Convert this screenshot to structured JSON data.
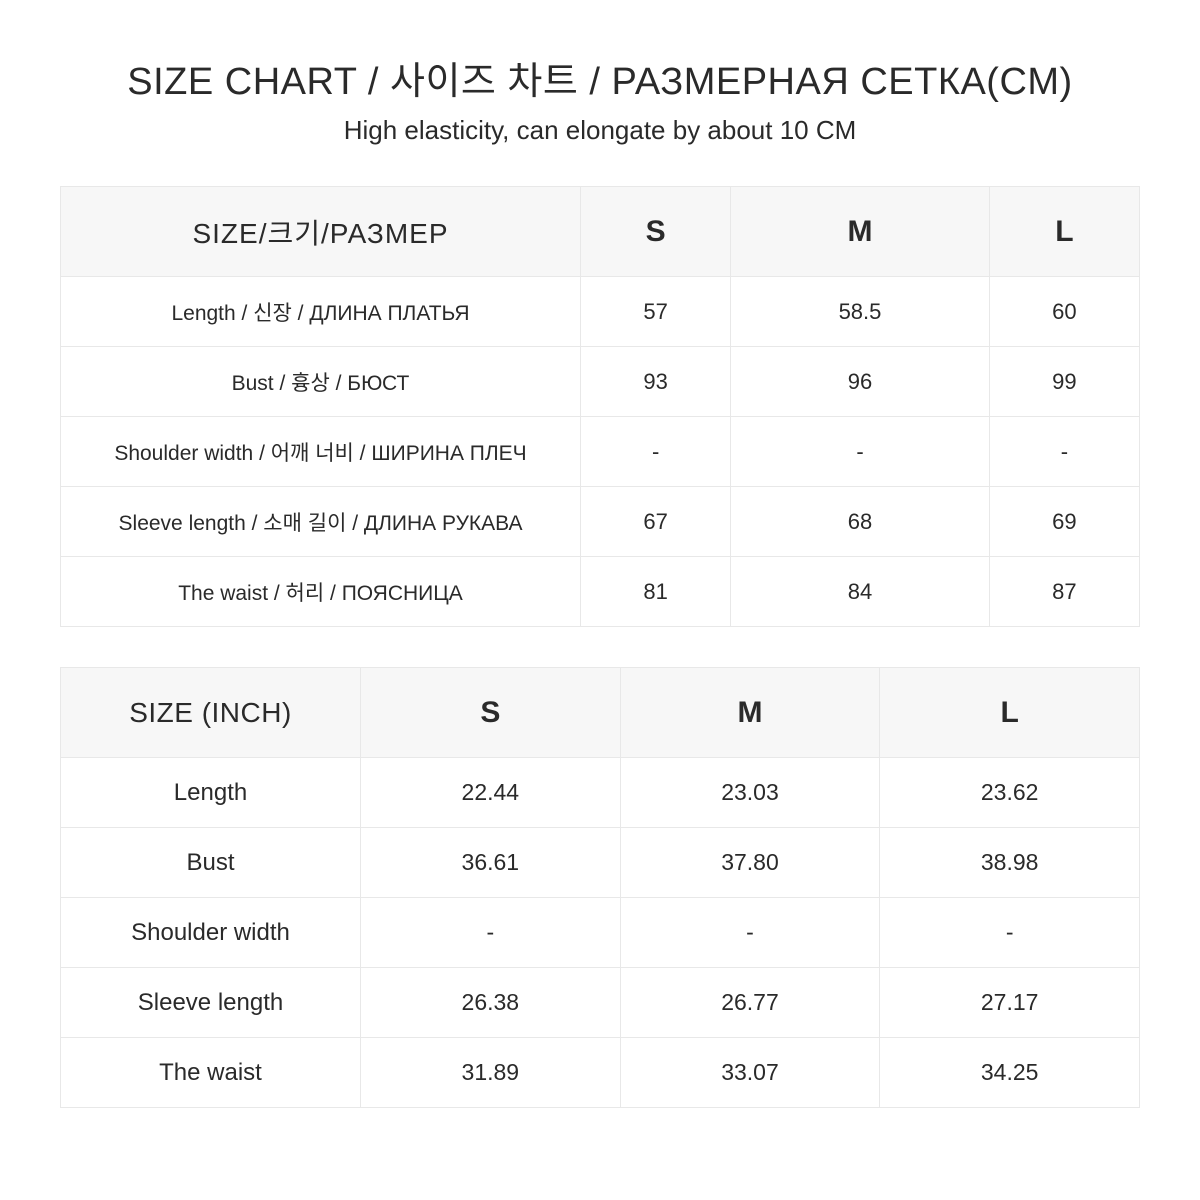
{
  "header": {
    "title": "SIZE CHART / 사이즈 차트 / РАЗМЕРНАЯ СЕТКА(CM)",
    "subtitle": "High elasticity, can elongate by about 10 CM"
  },
  "table_cm": {
    "type": "table",
    "header_bg": "#f7f7f7",
    "border_color": "#e8e8e8",
    "columns": [
      "SIZE/크기/РАЗМЕР",
      "S",
      "M",
      "L"
    ],
    "rows": [
      {
        "label": "Length  /  신장  /  ДЛИНА ПЛАТЬЯ",
        "s": "57",
        "m": "58.5",
        "l": "60"
      },
      {
        "label": "Bust  /  흉상  /  БЮСТ",
        "s": "93",
        "m": "96",
        "l": "99"
      },
      {
        "label": "Shoulder width  /  어깨 너비  /  ШИРИНА ПЛЕЧ",
        "s": "-",
        "m": "-",
        "l": "-"
      },
      {
        "label": "Sleeve length / 소매 길이  /  ДЛИНА РУКАВА",
        "s": "67",
        "m": "68",
        "l": "69"
      },
      {
        "label": "The waist  /  허리  /  ПОЯСНИЦА",
        "s": "81",
        "m": "84",
        "l": "87"
      }
    ]
  },
  "table_inch": {
    "type": "table",
    "header_bg": "#f7f7f7",
    "border_color": "#e8e8e8",
    "columns": [
      "SIZE (INCH)",
      "S",
      "M",
      "L"
    ],
    "rows": [
      {
        "label": "Length",
        "s": "22.44",
        "m": "23.03",
        "l": "23.62"
      },
      {
        "label": "Bust",
        "s": "36.61",
        "m": "37.80",
        "l": "38.98"
      },
      {
        "label": "Shoulder width",
        "s": "-",
        "m": "-",
        "l": "-"
      },
      {
        "label": "Sleeve length",
        "s": "26.38",
        "m": "26.77",
        "l": "27.17"
      },
      {
        "label": "The waist",
        "s": "31.89",
        "m": "33.07",
        "l": "34.25"
      }
    ]
  }
}
